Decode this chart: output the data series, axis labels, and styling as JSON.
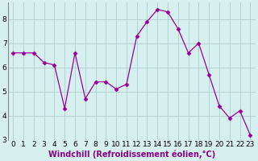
{
  "x": [
    0,
    1,
    2,
    3,
    4,
    5,
    6,
    7,
    8,
    9,
    10,
    11,
    12,
    13,
    14,
    15,
    16,
    17,
    18,
    19,
    20,
    21,
    22,
    23
  ],
  "y": [
    6.6,
    6.6,
    6.6,
    6.2,
    6.1,
    4.3,
    6.6,
    4.7,
    5.4,
    5.4,
    5.1,
    5.3,
    7.3,
    7.9,
    8.4,
    8.3,
    7.6,
    6.6,
    7.0,
    5.7,
    4.4,
    3.9,
    4.2,
    3.2
  ],
  "line_color": "#990099",
  "marker": "D",
  "marker_size": 2.5,
  "bg_color": "#d6f0f0",
  "grid_color": "#b0cece",
  "xlabel": "Windchill (Refroidissement éolien,°C)",
  "xlabel_fontsize": 7,
  "tick_fontsize": 6.5,
  "ylim": [
    3,
    8.7
  ],
  "yticks": [
    3,
    4,
    5,
    6,
    7,
    8
  ],
  "xticks": [
    0,
    1,
    2,
    3,
    4,
    5,
    6,
    7,
    8,
    9,
    10,
    11,
    12,
    13,
    14,
    15,
    16,
    17,
    18,
    19,
    20,
    21,
    22,
    23
  ],
  "spine_color": "#888888",
  "left_spine": true
}
